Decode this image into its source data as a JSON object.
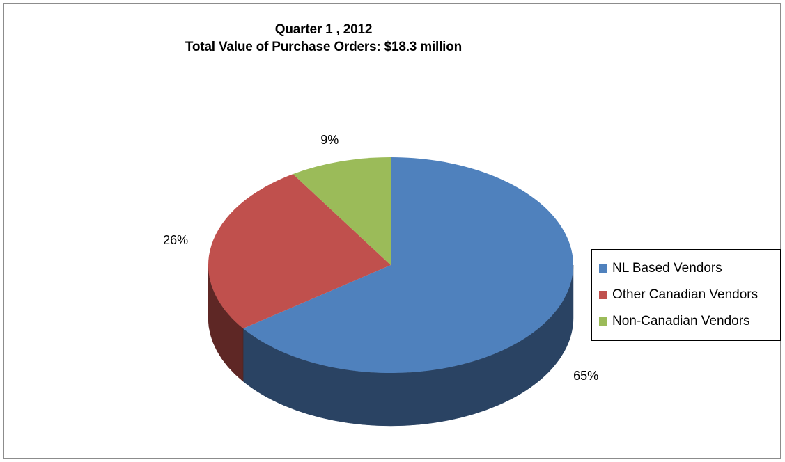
{
  "chart_data": {
    "type": "pie",
    "title": "Quarter 1 , 2012",
    "subtitle": "Total Value of Purchase Orders: $18.3 million",
    "slices": [
      {
        "label": "NL Based Vendors",
        "value": 65,
        "display": "65%",
        "color": "#4f81bd",
        "side_color": "#2a4363"
      },
      {
        "label": "Other Canadian Vendors",
        "value": 26,
        "display": "26%",
        "color": "#c0504d",
        "side_color": "#5e2725"
      },
      {
        "label": "Non-Canadian Vendors",
        "value": 9,
        "display": "9%",
        "color": "#9bbb59",
        "side_color": "#4f6a2c"
      }
    ],
    "legend_position": "right",
    "three_d": true
  }
}
